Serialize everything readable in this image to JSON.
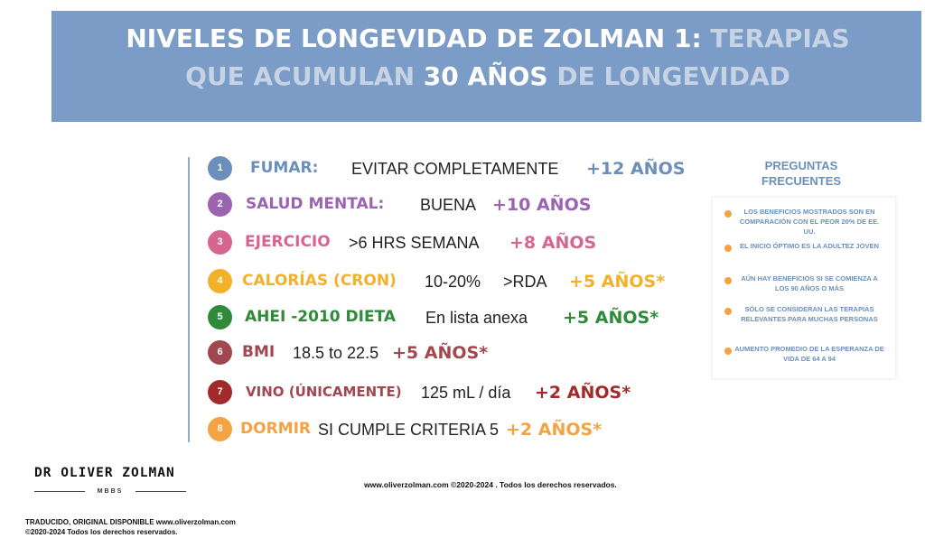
{
  "header": {
    "title_part1": "NIVELES DE LONGEVIDAD DE ZOLMAN 1: ",
    "title_part2": "TERAPIAS",
    "title_part3": "QUE ACUMULAN ",
    "title_part4": "30 AÑOS",
    "title_part5": " DE LONGEVIDAD"
  },
  "colors": {
    "header_bg": "#7a9cc6",
    "blue": "#6b8fba",
    "purple": "#9b63b0",
    "pink": "#d6668f",
    "yellow": "#f3b12a",
    "green": "#2f8a3a",
    "maroon": "#a0474f",
    "darkred": "#a32a2a",
    "orange": "#f3a341"
  },
  "rows": [
    {
      "number": "1",
      "category": "FUMAR:",
      "description": "EVITAR COMPLETAMENTE",
      "years": "+12 AÑOS"
    },
    {
      "number": "2",
      "category": "SALUD MENTAL:",
      "description": "BUENA",
      "years": "+10 AÑOS"
    },
    {
      "number": "3",
      "category": "EJERCICIO",
      "description": ">6 HRS SEMANA",
      "years": "+8 AÑOS"
    },
    {
      "number": "4",
      "category": "CALORÍAS (CRON)",
      "description": "10-20%",
      "description2": ">RDA",
      "years": "+5 AÑOS*"
    },
    {
      "number": "5",
      "category": "AHEI -2010 DIETA",
      "description": "En lista anexa",
      "years": "+5 AÑOS*"
    },
    {
      "number": "6",
      "category": "BMI",
      "description": "18.5 to 22.5",
      "years": "+5 AÑOS*"
    },
    {
      "number": "7",
      "category": "VINO (ÚNICAMENTE)",
      "description": "125 mL / día",
      "years": "+2 AÑOS*"
    },
    {
      "number": "8",
      "category": "DORMIR",
      "description": "SI CUMPLE CRITERIA 5",
      "years": "+2 AÑOS*"
    }
  ],
  "faq": {
    "title_line1": "PREGUNTAS",
    "title_line2": "FRECUENTES",
    "items": [
      "LOS BENEFICIOS MOSTRADOS SON EN COMPARACIÓN CON EL PEOR 20% DE EE. UU.",
      "EL INICIO ÓPTIMO ES LA ADULTEZ JOVEN",
      "AÚN HAY BENEFICIOS SI SE COMIENZA A LOS 90 AÑOS O MÁS",
      "SÓLO SE CONSIDERAN LAS TERAPIAS RELEVANTES PARA MUCHAS PERSONAS",
      "AUMENTO PROMEDIO DE LA ESPERANZA DE VIDA DE 64 A 94"
    ]
  },
  "logo": {
    "name": "DR OLIVER ZOLMAN",
    "sub": "MBBS"
  },
  "footer": {
    "center": "www.oliverzolman.com  ©2020-2024 . Todos los derechos reservados.",
    "left_line1": "TRADUCIDO, ORIGINAL DISPONIBLE  www.oliverzolman.com",
    "left_line2": "©2020-2024  Todos los derechos reservados."
  }
}
